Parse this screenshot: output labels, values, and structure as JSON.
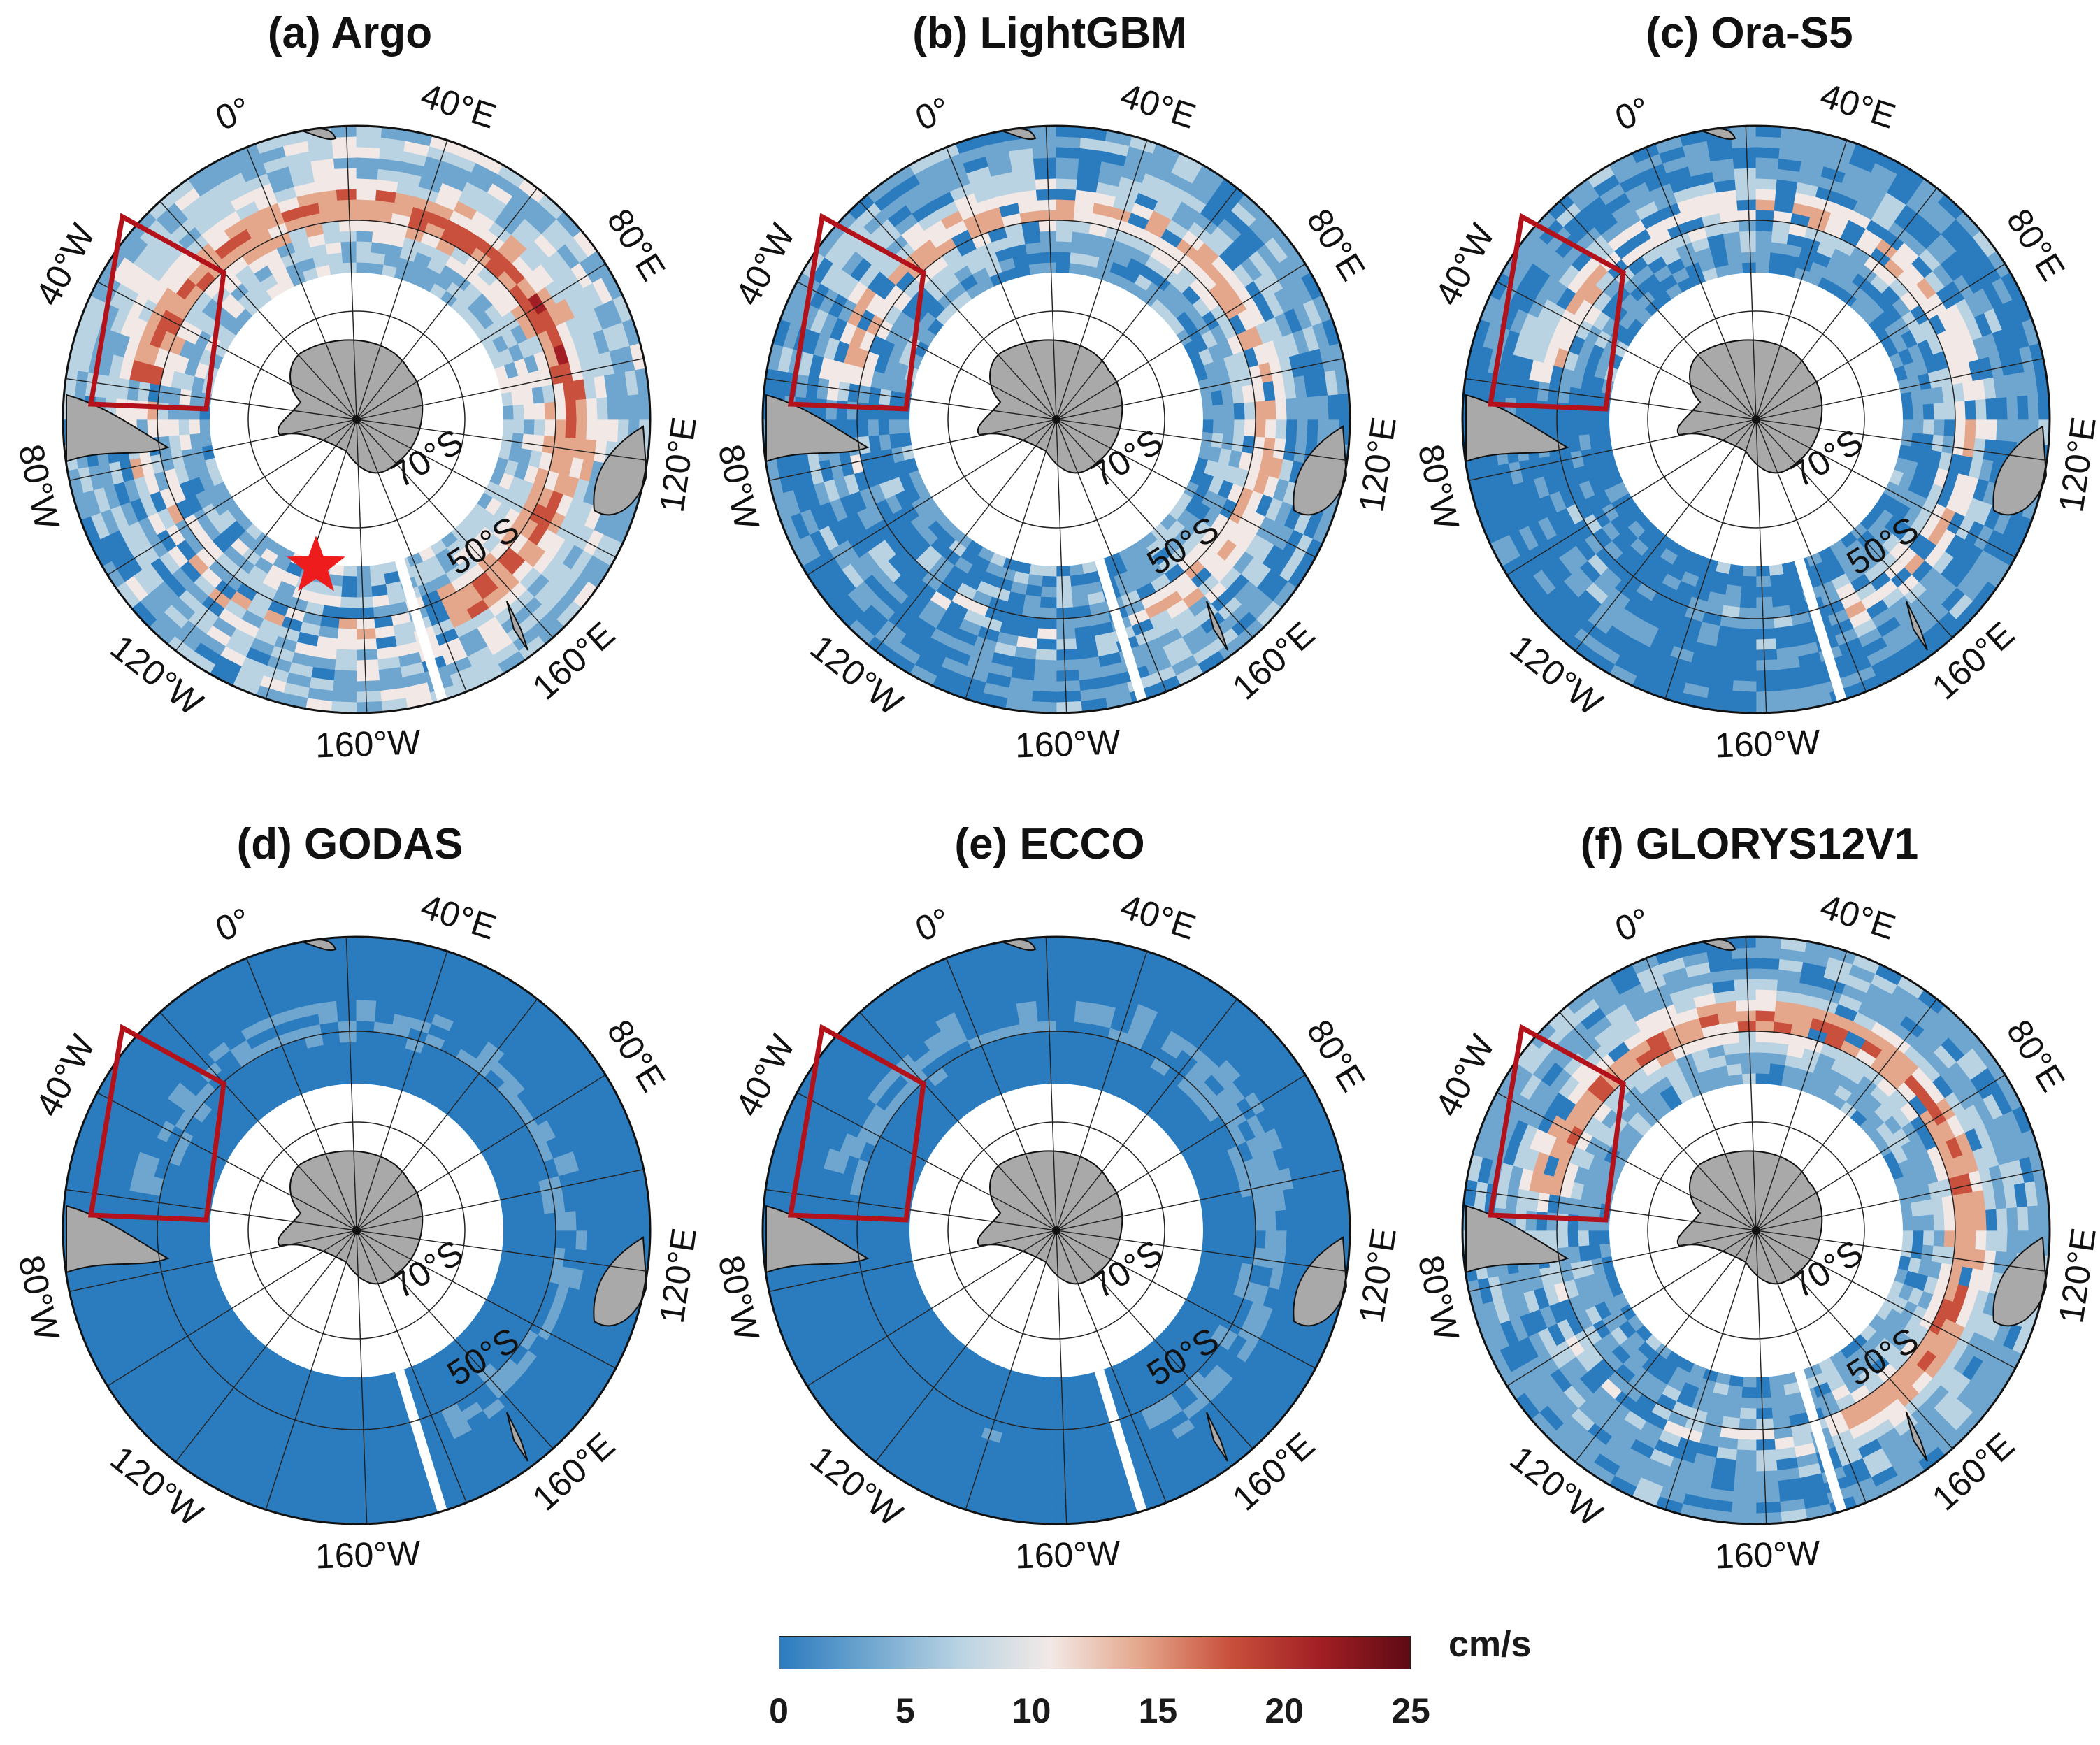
{
  "figure": {
    "panels": [
      {
        "id": "a",
        "title": "(a) Argo",
        "style": "argo",
        "marker": "star"
      },
      {
        "id": "b",
        "title": "(b) LightGBM",
        "style": "lgbm",
        "marker": ""
      },
      {
        "id": "c",
        "title": "(c) Ora-S5",
        "style": "oras5",
        "marker": ""
      },
      {
        "id": "d",
        "title": "(d) GODAS",
        "style": "godas",
        "marker": ""
      },
      {
        "id": "e",
        "title": "(e) ECCO",
        "style": "ecco",
        "marker": ""
      },
      {
        "id": "f",
        "title": "(f) GLORYS12V1",
        "style": "glorys",
        "marker": ""
      }
    ],
    "longitude_labels": [
      "0°",
      "40°E",
      "80°E",
      "120°E",
      "160°E",
      "160°W",
      "120°W",
      "80°W",
      "40°W"
    ],
    "latitude_labels": [
      "70°S",
      "50°S"
    ],
    "colorbar": {
      "unit": "cm/s",
      "ticks": [
        "0",
        "5",
        "10",
        "15",
        "20",
        "25"
      ],
      "min": 0,
      "max": 25,
      "colors": [
        "#2b7bbf",
        "#6fa6cf",
        "#b9d3e3",
        "#f2e9e6",
        "#e4a78c",
        "#c9503c",
        "#a11f24",
        "#5e0a14"
      ]
    },
    "region_box_color": "#b3121b",
    "star_color": "#ee1c1c",
    "land_color": "#a9a9a9"
  }
}
